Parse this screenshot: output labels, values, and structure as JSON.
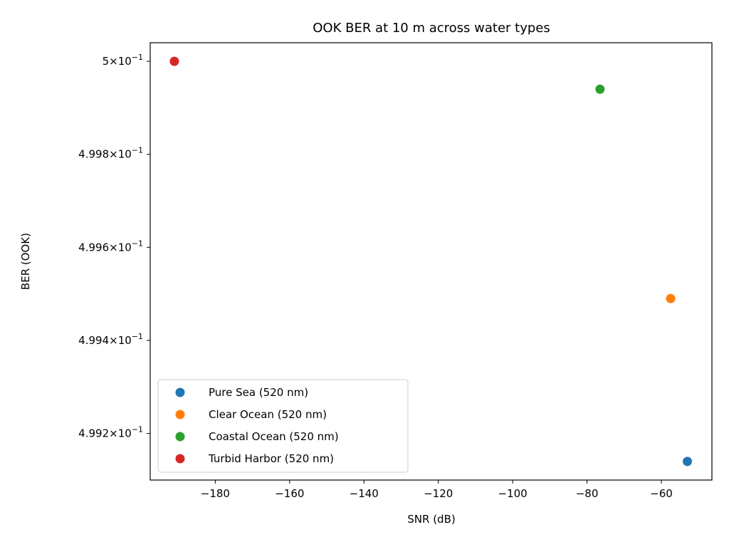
{
  "chart_data": {
    "type": "scatter",
    "title": "OOK BER at 10 m across water types",
    "xlabel": "SNR (dB)",
    "ylabel": "BER (OOK)",
    "xlim": [
      -197.5,
      -46.4
    ],
    "ylim": [
      0.4991,
      0.50004
    ],
    "y_scale": "log",
    "grid": false,
    "legend_position": "lower left",
    "x_ticks": [
      {
        "value": -180,
        "label": "−180"
      },
      {
        "value": -160,
        "label": "−160"
      },
      {
        "value": -140,
        "label": "−140"
      },
      {
        "value": -120,
        "label": "−120"
      },
      {
        "value": -100,
        "label": "−100"
      },
      {
        "value": -80,
        "label": "−80"
      },
      {
        "value": -60,
        "label": "−60"
      }
    ],
    "y_ticks": [
      {
        "value": 0.5,
        "mantissa": "5",
        "exponent": "−1"
      },
      {
        "value": 0.4998,
        "mantissa": "4.998",
        "exponent": "−1"
      },
      {
        "value": 0.4996,
        "mantissa": "4.996",
        "exponent": "−1"
      },
      {
        "value": 0.4994,
        "mantissa": "4.994",
        "exponent": "−1"
      },
      {
        "value": 0.4992,
        "mantissa": "4.992",
        "exponent": "−1"
      }
    ],
    "series": [
      {
        "name": "Pure Sea (520 nm)",
        "color": "#1f77b4",
        "x": [
          -53.0
        ],
        "y": [
          0.49914
        ]
      },
      {
        "name": "Clear Ocean (520 nm)",
        "color": "#ff7f0e",
        "x": [
          -57.5
        ],
        "y": [
          0.49949
        ]
      },
      {
        "name": "Coastal Ocean (520 nm)",
        "color": "#2ca02c",
        "x": [
          -76.5
        ],
        "y": [
          0.49994
        ]
      },
      {
        "name": "Turbid Harbor (520 nm)",
        "color": "#d62728",
        "x": [
          -191.0
        ],
        "y": [
          0.5
        ]
      }
    ]
  }
}
